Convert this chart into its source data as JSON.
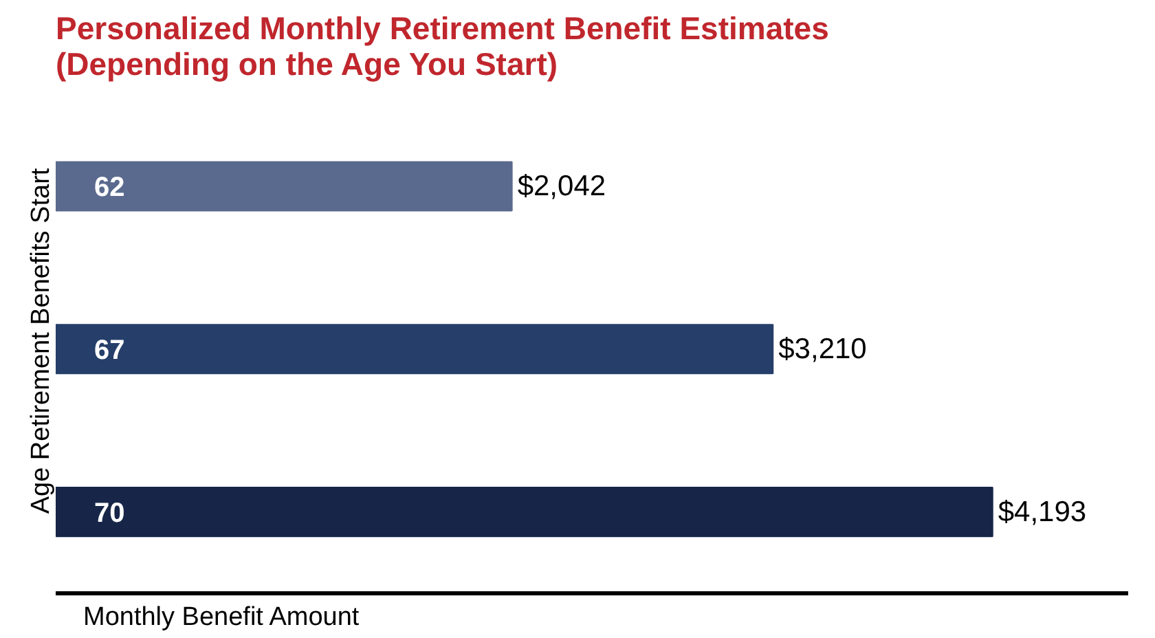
{
  "chart_data": {
    "type": "bar",
    "orientation": "horizontal",
    "title": "Personalized Monthly Retirement Benefit Estimates\n(Depending on the Age You Start)",
    "xlabel": "Monthly Benefit Amount",
    "ylabel": "Age Retirement Benefits Start",
    "categories": [
      "62",
      "67",
      "70"
    ],
    "values": [
      2042,
      3210,
      4193
    ],
    "colors": [
      "#5a6a8e",
      "#263f6a",
      "#172648"
    ],
    "value_labels": [
      "$2,042",
      "$3,210",
      "$4,193"
    ],
    "xlim": [
      0,
      4800
    ]
  }
}
